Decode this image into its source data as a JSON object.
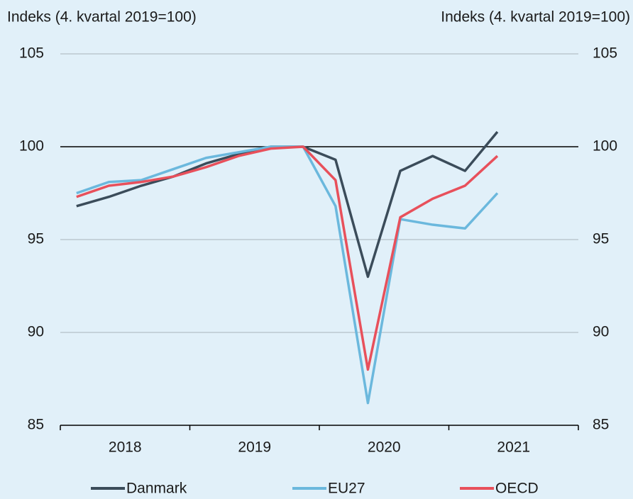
{
  "chart_data": {
    "type": "line",
    "y_label": "Indeks (4. kvartal 2019=100)",
    "y2_label": "Indeks (4. kvartal 2019=100)",
    "years": [
      "2018",
      "2019",
      "2020",
      "2021"
    ],
    "categories": [
      null,
      null,
      null,
      null,
      null,
      null,
      null,
      null,
      null,
      null,
      null,
      null,
      null,
      null
    ],
    "series": [
      {
        "name": "Danmark",
        "color": "#3b4c5a",
        "values": [
          96.8,
          97.3,
          97.9,
          98.4,
          99.1,
          99.6,
          100.0,
          100.0,
          99.3,
          93.0,
          98.7,
          99.5,
          98.7,
          100.8
        ]
      },
      {
        "name": "EU27",
        "color": "#6bb8dd",
        "values": [
          97.5,
          98.1,
          98.2,
          98.8,
          99.4,
          99.7,
          100.0,
          100.0,
          96.8,
          86.2,
          96.1,
          95.8,
          95.6,
          97.5
        ]
      },
      {
        "name": "OECD",
        "color": "#e8505b",
        "values": [
          97.3,
          97.9,
          98.1,
          98.4,
          98.9,
          99.5,
          99.9,
          100.0,
          98.2,
          88.0,
          96.2,
          97.2,
          97.9,
          99.5
        ]
      }
    ],
    "ylim": [
      85,
      105
    ],
    "yticks": [
      85,
      90,
      95,
      100,
      105
    ],
    "y2lim": [
      85,
      105
    ],
    "y2ticks": [
      85,
      90,
      95,
      100,
      105
    ],
    "reference_line": 100,
    "grid": true,
    "legend": "bottom"
  }
}
